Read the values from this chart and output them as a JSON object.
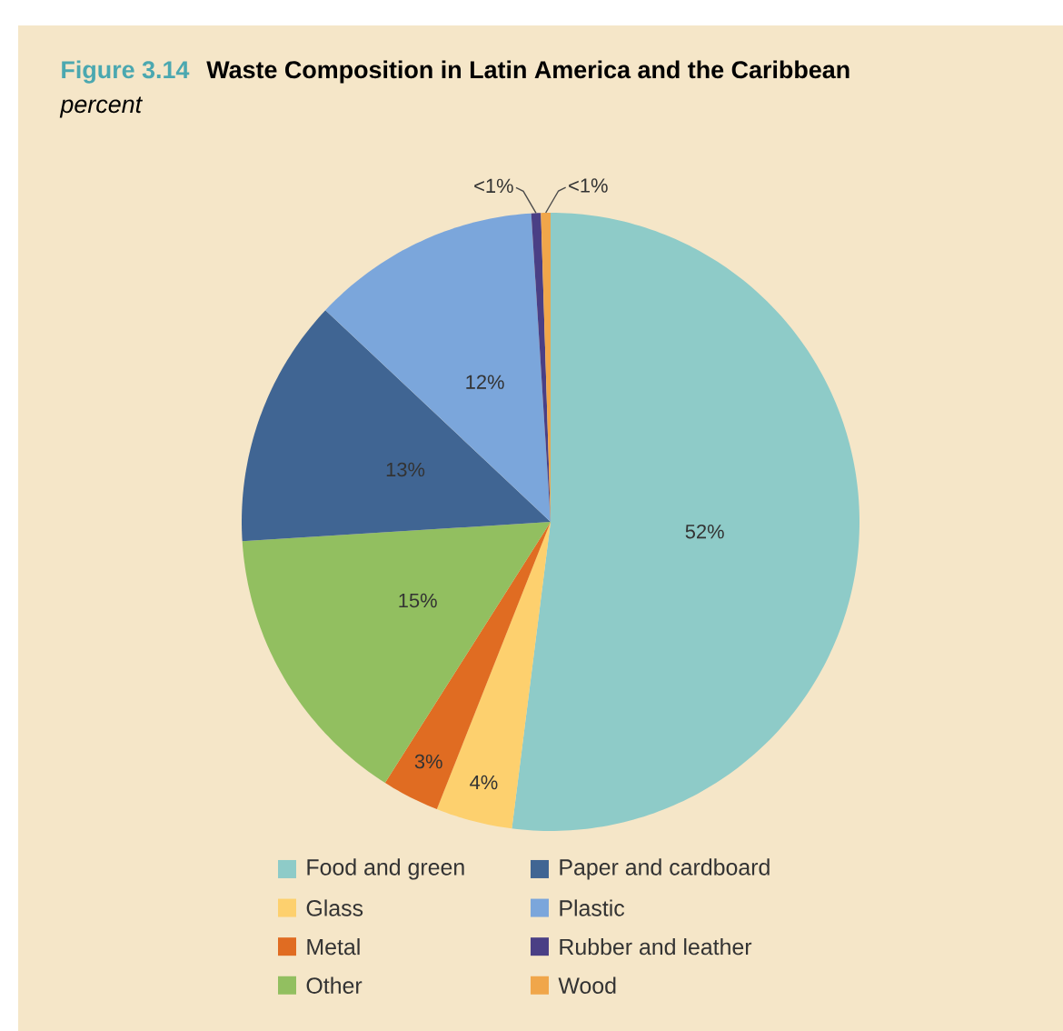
{
  "chart_data": {
    "type": "pie",
    "title": "Waste Composition in Latin America and the Caribbean",
    "subtitle": "percent",
    "annotations": [
      "Figure 3.14"
    ],
    "categories": [
      "Food and green",
      "Glass",
      "Metal",
      "Other",
      "Paper and cardboard",
      "Plastic",
      "Rubber and leather",
      "Wood"
    ],
    "values": [
      52,
      4,
      3,
      15,
      13,
      12,
      0.5,
      0.5
    ],
    "value_labels": [
      "52%",
      "4%",
      "3%",
      "15%",
      "13%",
      "12%",
      "<1%",
      "<1%"
    ],
    "colors": [
      "#8ecbc8",
      "#fdd06e",
      "#e06c22",
      "#92bf60",
      "#406593",
      "#7ba6db",
      "#4a3f85",
      "#f0a64a"
    ],
    "legend": "bottom"
  }
}
